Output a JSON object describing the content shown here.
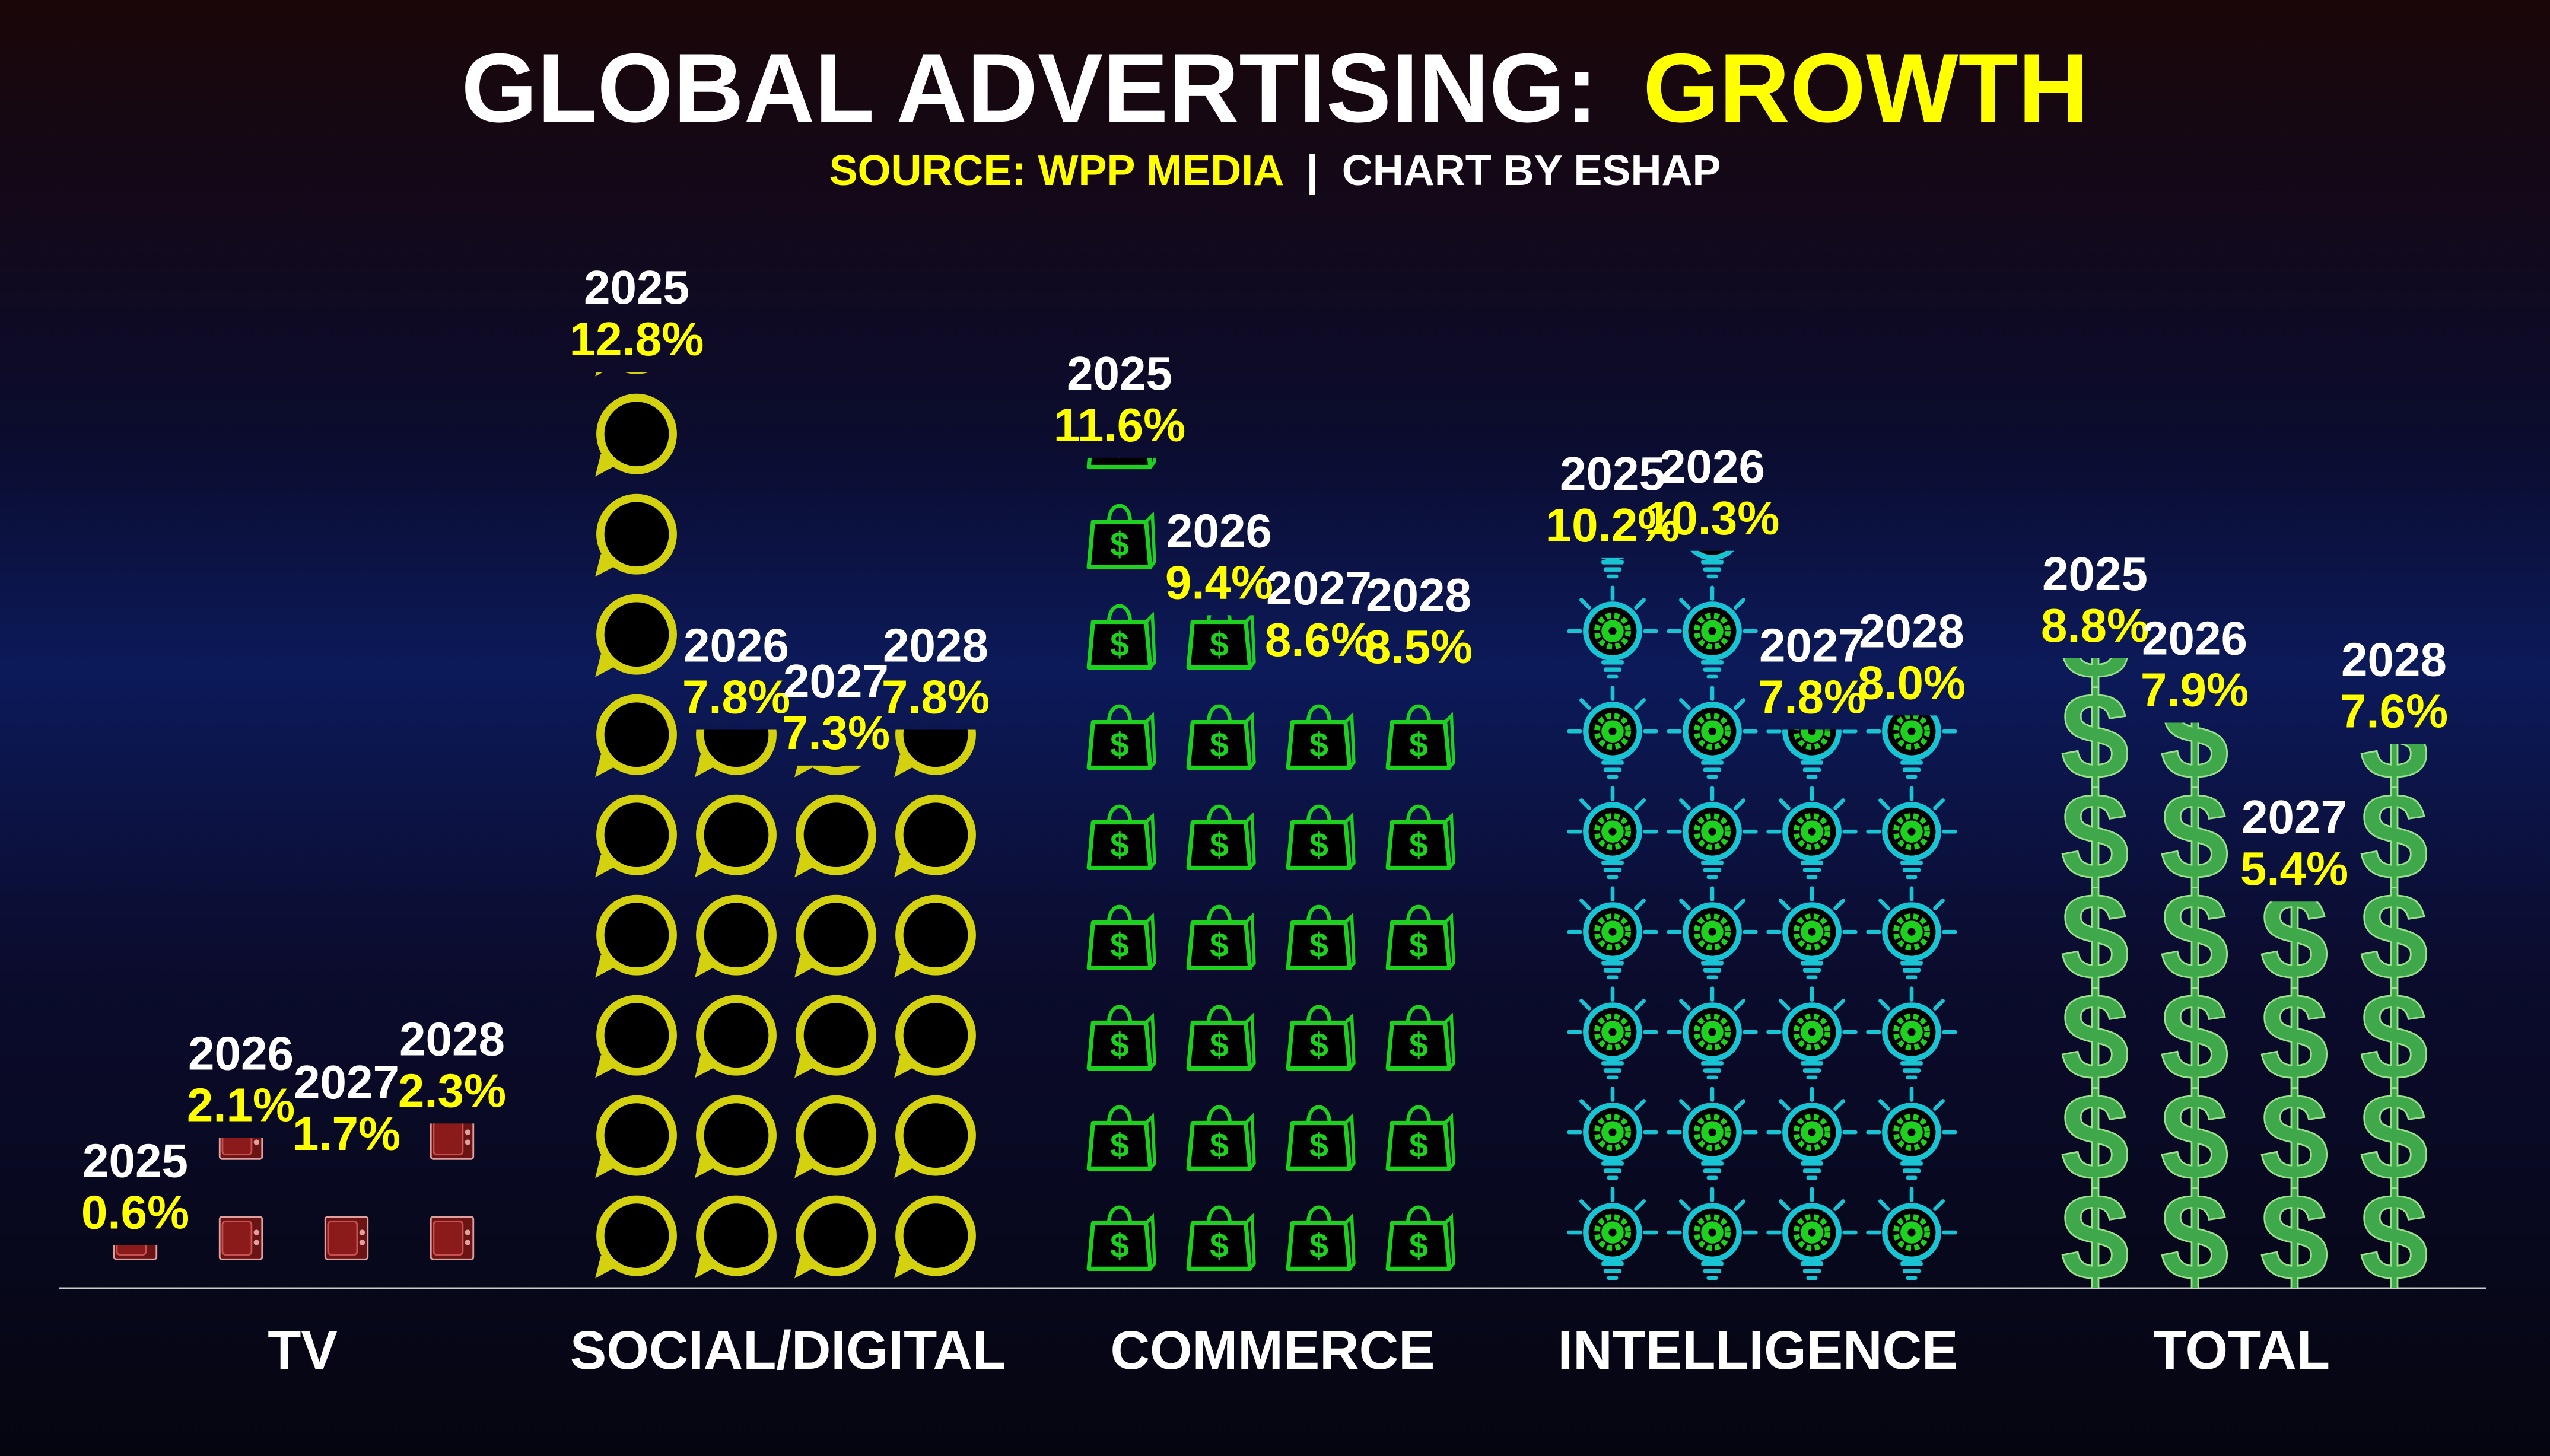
{
  "title": {
    "main": "GLOBAL ADVERTISING:",
    "highlight": "GROWTH",
    "source": "SOURCE: WPP MEDIA",
    "separator": "|",
    "credit": "CHART BY ESHAP"
  },
  "colors": {
    "title_white": "#ffffff",
    "title_yellow": "#ffff00",
    "year_label": "#ffffff",
    "value_label": "#ffff00",
    "category_label": "#ffffff",
    "baseline": "#cccccc"
  },
  "chart_data": {
    "type": "bar",
    "unit": "%",
    "icon_value": 1.4,
    "categories": [
      "TV",
      "SOCIAL/DIGITAL",
      "COMMERCE",
      "INTELLIGENCE",
      "TOTAL"
    ],
    "series": [
      {
        "name": "2025",
        "values": [
          0.6,
          12.8,
          11.6,
          10.2,
          8.8
        ]
      },
      {
        "name": "2026",
        "values": [
          2.1,
          7.8,
          9.4,
          10.3,
          7.9
        ]
      },
      {
        "name": "2027",
        "values": [
          1.7,
          7.3,
          8.6,
          7.8,
          5.4
        ]
      },
      {
        "name": "2028",
        "values": [
          2.3,
          7.8,
          8.5,
          8.0,
          7.6
        ]
      }
    ],
    "labels": [
      [
        [
          "2025",
          "0.6%"
        ],
        [
          "2026",
          "2.1%"
        ],
        [
          "2027",
          "1.7%"
        ],
        [
          "2028",
          "2.3%"
        ]
      ],
      [
        [
          "2025",
          "12.8%"
        ],
        [
          "2026",
          "7.8%"
        ],
        [
          "2027",
          "7.3%"
        ],
        [
          "2028",
          "7.8%"
        ]
      ],
      [
        [
          "2025",
          "11.6%"
        ],
        [
          "2026",
          "9.4%"
        ],
        [
          "2027",
          "8.6%"
        ],
        [
          "2028",
          "8.5%"
        ]
      ],
      [
        [
          "2025",
          "10.2%"
        ],
        [
          "2026",
          "10.3%"
        ],
        [
          "2027",
          "7.8%"
        ],
        [
          "2028",
          "8.0%"
        ]
      ],
      [
        [
          "2025",
          "8.8%"
        ],
        [
          "2026",
          "7.9%"
        ],
        [
          "2027",
          "5.4%"
        ],
        [
          "2028",
          "7.6%"
        ]
      ]
    ],
    "icons": [
      "tv-icon",
      "speech-bubble-icon",
      "shopping-bag-icon",
      "lightbulb-gear-icon",
      "dollar-sign-icon"
    ],
    "icon_colors": [
      "#8a1a1a",
      "#d4d10f",
      "#1fd11f",
      "#18c4d4",
      "#3ea84a"
    ]
  }
}
